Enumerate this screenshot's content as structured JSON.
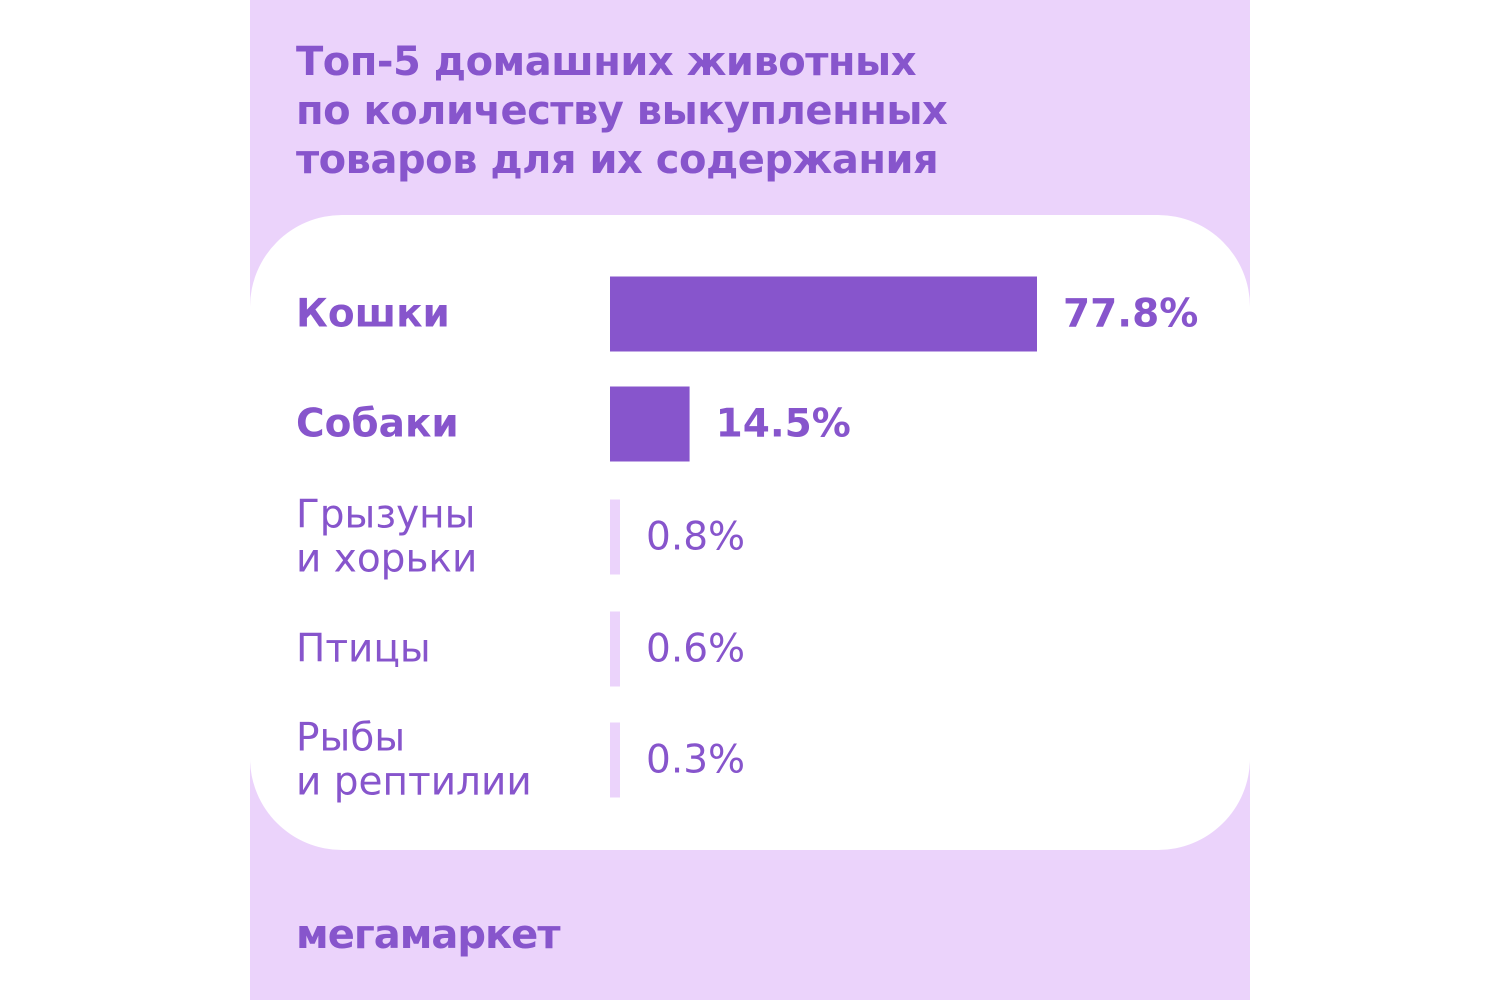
{
  "title_lines": [
    "Топ-5 домашних животных",
    "по количеству выкупленных",
    "товаров для их содержания"
  ],
  "brand": "мегамаркет",
  "colors": {
    "background": "#ebd3fb",
    "card": "#ffffff",
    "accent": "#8755cc",
    "small_bar": "#ebd3fb"
  },
  "chart_data": {
    "type": "bar",
    "orientation": "horizontal",
    "categories": [
      [
        "Кошки"
      ],
      [
        "Собаки"
      ],
      [
        "Грызуны",
        "и хорьки"
      ],
      [
        "Птицы"
      ],
      [
        "Рыбы",
        "и рептилии"
      ]
    ],
    "values": [
      77.8,
      14.5,
      0.8,
      0.6,
      0.3
    ],
    "value_labels": [
      "77.8%",
      "14.5%",
      "0.8%",
      "0.6%",
      "0.3%"
    ],
    "unit": "%",
    "grid": false,
    "legend": "none"
  }
}
